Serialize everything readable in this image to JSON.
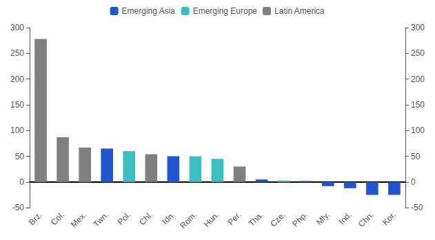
{
  "chart_data": {
    "type": "bar",
    "categories": [
      "Brz.",
      "Col.",
      "Mex.",
      "Twn.",
      "Pol.",
      "Chl.",
      "Idn.",
      "Rom.",
      "Hun.",
      "Per.",
      "Tha.",
      "Cze.",
      "Php.",
      "Mly.",
      "Ind.",
      "Chn.",
      "Kor."
    ],
    "series": [
      {
        "name": "Emerging Asia",
        "color": "#2255cc",
        "values": [
          null,
          null,
          null,
          65,
          null,
          null,
          50,
          null,
          null,
          null,
          5,
          null,
          2,
          -8,
          -12,
          -25,
          -25
        ]
      },
      {
        "name": "Emerging Europe",
        "color": "#3dbfbf",
        "values": [
          null,
          null,
          null,
          null,
          60,
          null,
          null,
          50,
          45,
          null,
          null,
          3,
          null,
          null,
          null,
          null,
          null
        ]
      },
      {
        "name": "Latin America",
        "color": "#808080",
        "values": [
          278,
          87,
          67,
          null,
          null,
          54,
          null,
          null,
          null,
          30,
          null,
          null,
          null,
          null,
          null,
          null,
          null
        ]
      }
    ],
    "ylim": [
      -50,
      300
    ],
    "yticks": [
      -50,
      0,
      50,
      100,
      150,
      200,
      250,
      300
    ],
    "y2lim": [
      -50,
      300
    ],
    "y2ticks": [
      -50,
      0,
      50,
      100,
      150,
      200,
      250,
      300
    ],
    "grid": false,
    "legend": "upper center"
  }
}
